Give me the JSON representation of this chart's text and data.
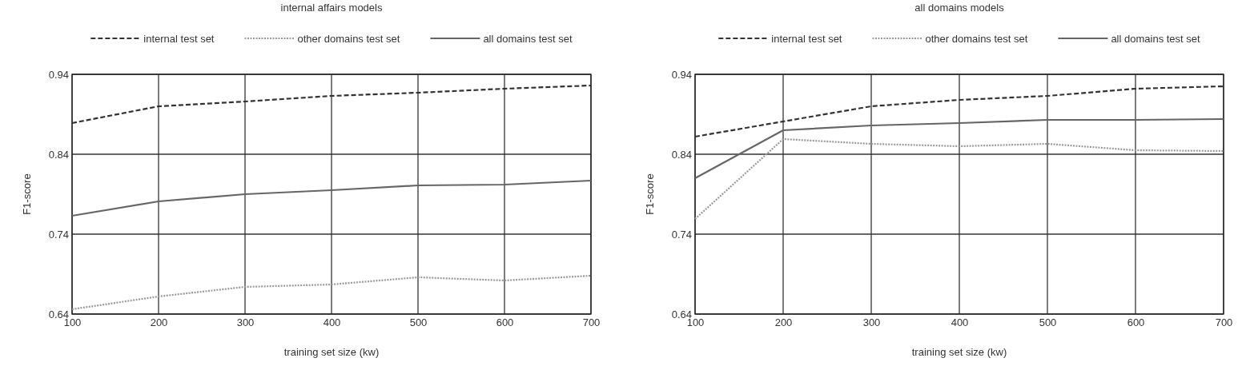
{
  "chart_data": [
    {
      "type": "line",
      "title": "internal affairs models",
      "xlabel": "training set size (kw)",
      "ylabel": "F1-score",
      "x": [
        100,
        200,
        300,
        400,
        500,
        600,
        700
      ],
      "xlim": [
        100,
        700
      ],
      "xticks": [
        100,
        200,
        300,
        400,
        500,
        600,
        700
      ],
      "ylim": [
        0.64,
        0.94
      ],
      "yticks": [
        0.64,
        0.74,
        0.84,
        0.94
      ],
      "grid": true,
      "legend": "top",
      "series": [
        {
          "name": "internal test set",
          "color": "#333333",
          "line_style": "dashed",
          "values": [
            0.879,
            0.9,
            0.906,
            0.913,
            0.917,
            0.922,
            0.926
          ]
        },
        {
          "name": "other domains test set",
          "color": "#999999",
          "line_style": "dotted",
          "values": [
            0.646,
            0.662,
            0.674,
            0.677,
            0.686,
            0.682,
            0.688
          ]
        },
        {
          "name": "all domains test set",
          "color": "#666666",
          "line_style": "solid",
          "values": [
            0.763,
            0.781,
            0.79,
            0.795,
            0.801,
            0.802,
            0.807
          ]
        }
      ]
    },
    {
      "type": "line",
      "title": "all domains models",
      "xlabel": "training set size (kw)",
      "ylabel": "F1-score",
      "x": [
        100,
        200,
        300,
        400,
        500,
        600,
        700
      ],
      "xlim": [
        100,
        700
      ],
      "xticks": [
        100,
        200,
        300,
        400,
        500,
        600,
        700
      ],
      "ylim": [
        0.64,
        0.94
      ],
      "yticks": [
        0.64,
        0.74,
        0.84,
        0.94
      ],
      "grid": true,
      "legend": "top",
      "series": [
        {
          "name": "internal test set",
          "color": "#333333",
          "line_style": "dashed",
          "values": [
            0.862,
            0.881,
            0.9,
            0.908,
            0.913,
            0.922,
            0.925
          ]
        },
        {
          "name": "other domains test set",
          "color": "#999999",
          "line_style": "dotted",
          "values": [
            0.759,
            0.859,
            0.853,
            0.85,
            0.853,
            0.845,
            0.844
          ]
        },
        {
          "name": "all domains test set",
          "color": "#666666",
          "line_style": "solid",
          "values": [
            0.81,
            0.87,
            0.876,
            0.879,
            0.883,
            0.883,
            0.884
          ]
        }
      ]
    }
  ]
}
